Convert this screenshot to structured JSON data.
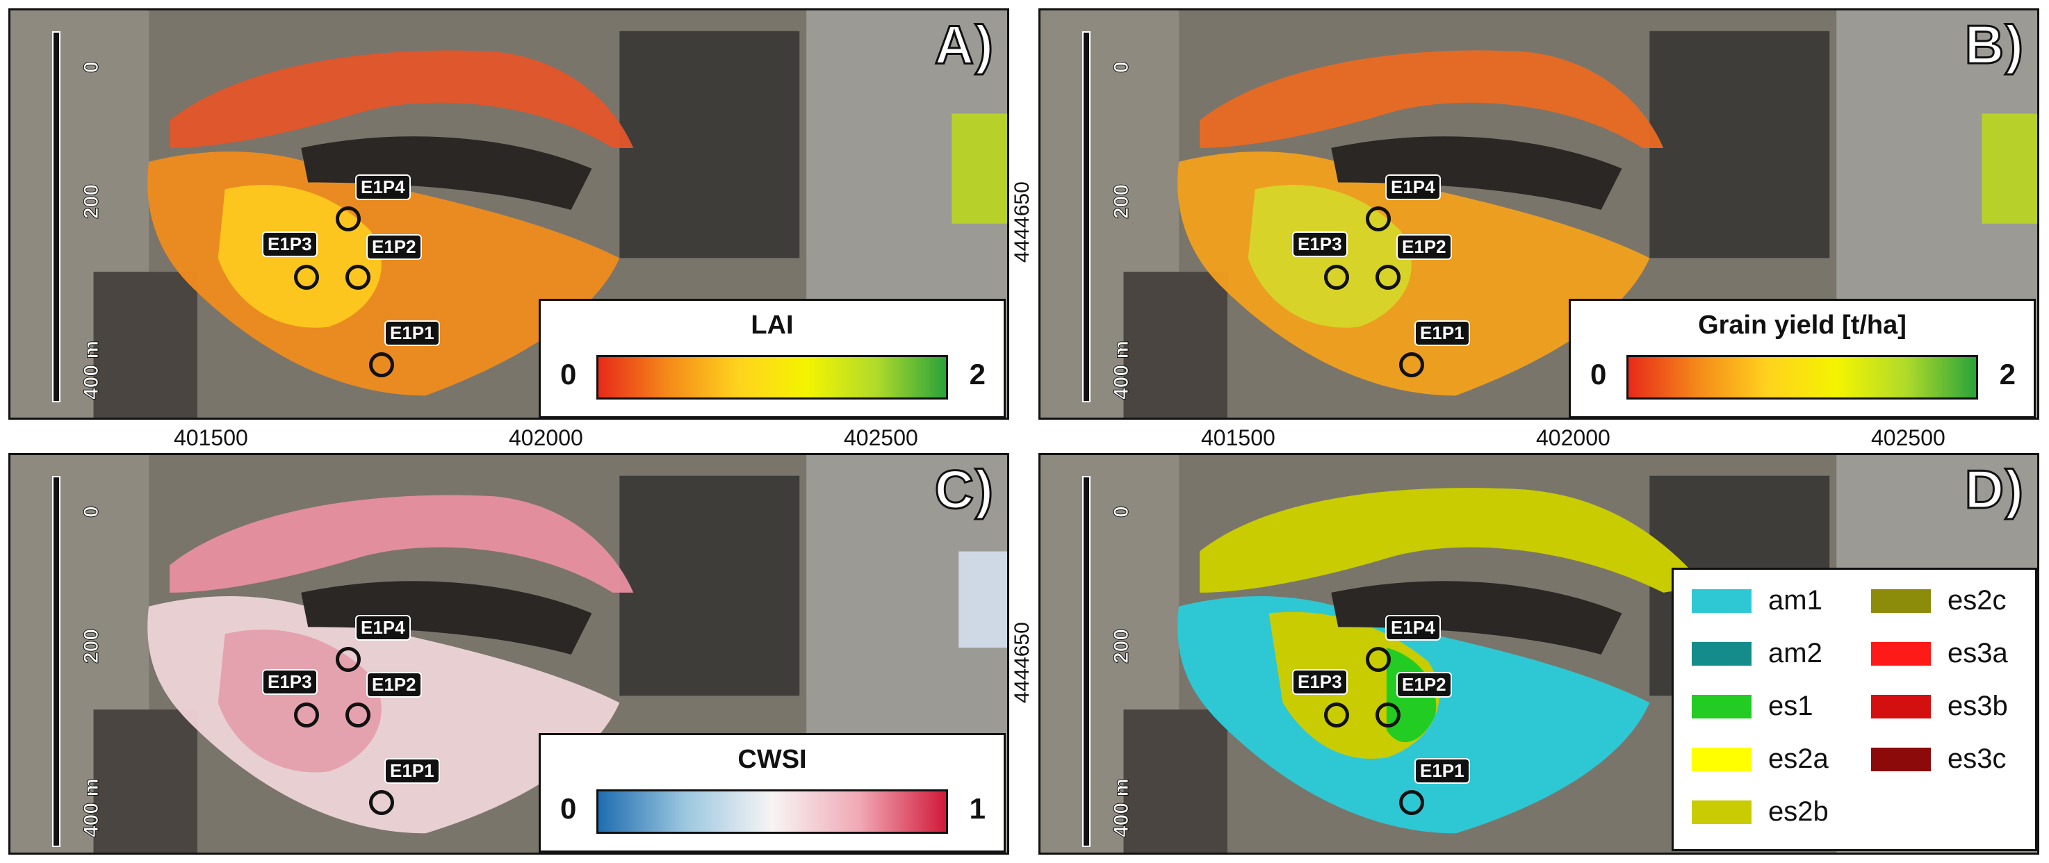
{
  "panels": {
    "A": {
      "label": "A)",
      "legend_title": "LAI",
      "legend_min": "0",
      "legend_max": "2"
    },
    "B": {
      "label": "B)",
      "legend_title": "Grain yield [t/ha]",
      "legend_min": "0",
      "legend_max": "2"
    },
    "C": {
      "label": "C)",
      "legend_title": "CWSI",
      "legend_min": "0",
      "legend_max": "1"
    },
    "D": {
      "label": "D)"
    }
  },
  "scale": {
    "tick0": "0",
    "tick1": "200",
    "tick2": "400 m"
  },
  "axes": {
    "x_ticks": [
      "401500",
      "402000",
      "402500"
    ],
    "y_tick": "4444650"
  },
  "points": [
    {
      "id": "E1P4"
    },
    {
      "id": "E1P3"
    },
    {
      "id": "E1P2"
    },
    {
      "id": "E1P1"
    }
  ],
  "classes": [
    {
      "name": "am1",
      "color": "#2ec8d4"
    },
    {
      "name": "es2c",
      "color": "#8c8c0a"
    },
    {
      "name": "am2",
      "color": "#148c8c"
    },
    {
      "name": "es3a",
      "color": "#ff1a1a"
    },
    {
      "name": "es1",
      "color": "#22cc22"
    },
    {
      "name": "es3b",
      "color": "#d40f0f"
    },
    {
      "name": "es2a",
      "color": "#ffff00"
    },
    {
      "name": "es3c",
      "color": "#8c0a0a"
    },
    {
      "name": "es2b",
      "color": "#c8cc00"
    }
  ],
  "colors": {
    "lai_ramp": [
      "#e82a1a",
      "#f58a1a",
      "#ffd21e",
      "#f4f400",
      "#b0da2a",
      "#2aa33a"
    ],
    "cwsi_ramp": [
      "#1f6db0",
      "#9cc7e0",
      "#f7f4f4",
      "#f0a9b5",
      "#d11a3a"
    ]
  }
}
